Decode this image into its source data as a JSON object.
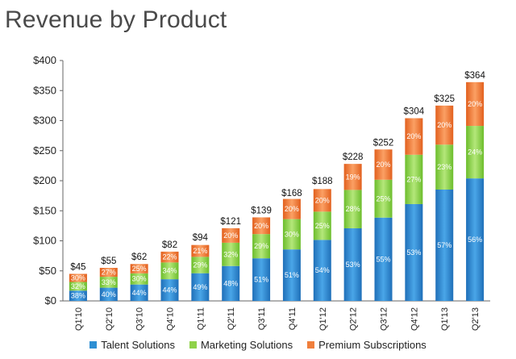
{
  "chart_data": {
    "type": "bar",
    "stacked": true,
    "title": "Revenue by Product",
    "categories": [
      "Q1'10",
      "Q2'10",
      "Q3'10",
      "Q4'10",
      "Q1'11",
      "Q2'11",
      "Q3'11",
      "Q4'11",
      "Q1'12",
      "Q2'12",
      "Q3'12",
      "Q4'12",
      "Q1'13",
      "Q2'13"
    ],
    "totals": [
      45,
      55,
      62,
      82,
      94,
      121,
      139,
      168,
      188,
      228,
      252,
      304,
      325,
      364
    ],
    "total_labels": [
      "$45",
      "$55",
      "$62",
      "$82",
      "$94",
      "$121",
      "$139",
      "$168",
      "$188",
      "$228",
      "$252",
      "$304",
      "$325",
      "$364"
    ],
    "series": [
      {
        "name": "Talent Solutions",
        "color": "#2e8fd3",
        "percent": [
          38,
          40,
          44,
          44,
          49,
          48,
          51,
          51,
          54,
          53,
          55,
          53,
          57,
          56
        ]
      },
      {
        "name": "Marketing Solutions",
        "color": "#8fd24a",
        "percent": [
          32,
          33,
          30,
          34,
          29,
          32,
          29,
          30,
          25,
          28,
          25,
          27,
          23,
          24
        ]
      },
      {
        "name": "Premium Subscriptions",
        "color": "#f07f3c",
        "percent": [
          30,
          27,
          25,
          22,
          21,
          20,
          20,
          20,
          20,
          19,
          20,
          20,
          20,
          20
        ]
      }
    ],
    "yticks": [
      "$0",
      "$50",
      "$100",
      "$150",
      "$200",
      "$250",
      "$300",
      "$350",
      "$400"
    ],
    "ylim": [
      0,
      400
    ],
    "legend_position": "bottom",
    "grid": false
  }
}
